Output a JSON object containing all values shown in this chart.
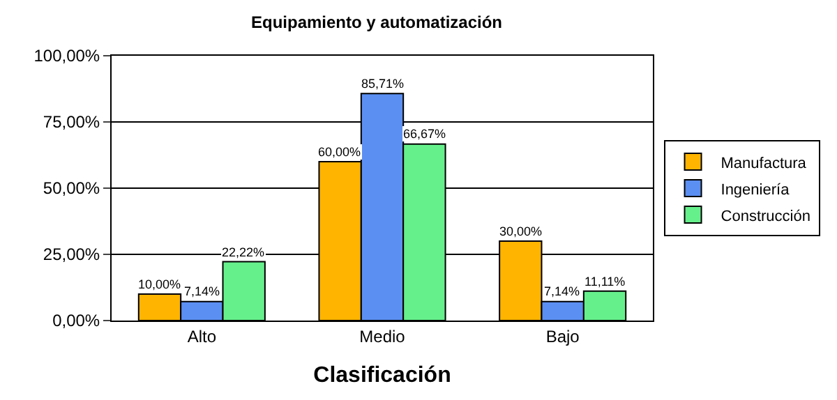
{
  "chart_data": {
    "type": "bar",
    "title": "Equipamiento y automatización",
    "xlabel": "Clasificación",
    "categories": [
      "Alto",
      "Medio",
      "Bajo"
    ],
    "series": [
      {
        "name": "Manufactura",
        "color": "#ffb400",
        "values": [
          10.0,
          60.0,
          30.0
        ],
        "value_labels": [
          "10,00%",
          "60,00%",
          "30,00%"
        ]
      },
      {
        "name": "Ingeniería",
        "color": "#5b8ff2",
        "values": [
          7.14,
          85.71,
          7.14
        ],
        "value_labels": [
          "7,14%",
          "85,71%",
          "7,14%"
        ]
      },
      {
        "name": "Construcción",
        "color": "#66f08c",
        "values": [
          22.22,
          66.67,
          11.11
        ],
        "value_labels": [
          "22,22%",
          "66,67%",
          "11,11%"
        ]
      }
    ],
    "ylim": [
      0,
      100
    ],
    "yticks": [
      {
        "value": 0,
        "label": "0,00%"
      },
      {
        "value": 25,
        "label": "25,00%"
      },
      {
        "value": 50,
        "label": "50,00%"
      },
      {
        "value": 75,
        "label": "75,00%"
      },
      {
        "value": 100,
        "label": "100,00%"
      }
    ],
    "grid": "y",
    "legend": "right"
  }
}
